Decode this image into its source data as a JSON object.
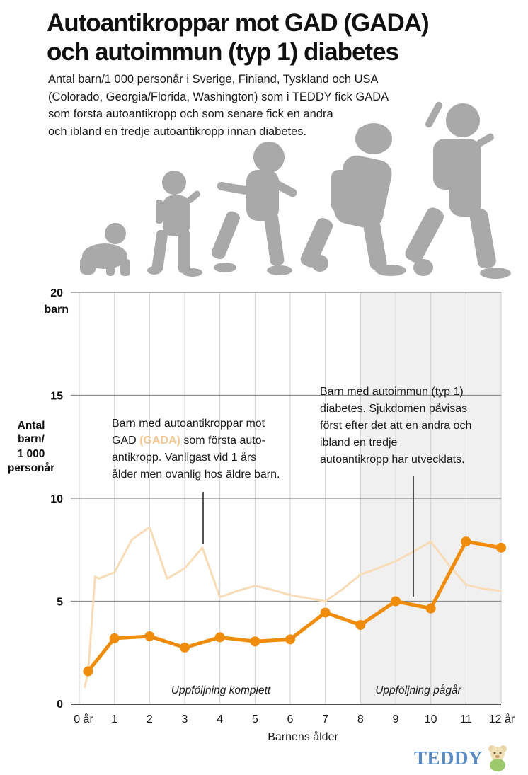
{
  "title_line1": "Autoantikroppar mot GAD (GADA)",
  "title_line2": "och autoimmun (typ 1) diabetes",
  "subtitle_lines": [
    "Antal barn/1 000 personår i Sverige, Finland, Tyskland och USA",
    "(Colorado, Georgia/Florida, Washington) som i TEDDY fick GADA",
    "som första autoantikropp och som senare fick en andra",
    "och ibland en tredje autoantikropp innan diabetes."
  ],
  "colors": {
    "gada_line": "#f8dcb8",
    "diabetes_line": "#ef8c0c",
    "grid": "#8a8a8a",
    "shade": "#f0f0f0",
    "silhouette": "#a9a9a9"
  },
  "chart_data": {
    "type": "line",
    "x_tick_labels": [
      "0 år",
      "1",
      "2",
      "3",
      "4",
      "5",
      "6",
      "7",
      "8",
      "9",
      "10",
      "11",
      "12 år"
    ],
    "y_ticks": [
      0,
      5,
      10,
      15,
      20
    ],
    "y_top_unit": "barn",
    "ylim": [
      0,
      20
    ],
    "xlim": [
      0,
      12
    ],
    "ylabel_lines": [
      "Antal",
      "barn/",
      "1 000",
      "personår"
    ],
    "xlabel": "Barnens ålder",
    "grid": true,
    "shaded_region": {
      "from": 8,
      "to": 12
    },
    "series": [
      {
        "key": "gada",
        "x": [
          0.15,
          0.25,
          0.45,
          0.55,
          1.0,
          1.5,
          2.0,
          2.5,
          3.0,
          3.5,
          4.0,
          4.5,
          5.0,
          5.5,
          6.0,
          6.5,
          7.0,
          7.5,
          8.0,
          8.5,
          9.0,
          9.5,
          10.0,
          10.5,
          11.0,
          11.5,
          12.0
        ],
        "y": [
          0.8,
          1.5,
          6.2,
          6.1,
          6.4,
          8.0,
          8.6,
          6.1,
          6.6,
          7.6,
          5.2,
          5.5,
          5.75,
          5.55,
          5.3,
          5.15,
          5.0,
          5.6,
          6.3,
          6.6,
          6.95,
          7.4,
          7.9,
          6.8,
          5.8,
          5.6,
          5.5
        ]
      },
      {
        "key": "diabetes",
        "x": [
          0.25,
          1.0,
          2.0,
          3.0,
          4.0,
          5.0,
          6.0,
          7.0,
          8.0,
          9.0,
          10.0,
          11.0,
          12.0
        ],
        "y": [
          1.6,
          3.2,
          3.3,
          2.75,
          3.25,
          3.05,
          3.15,
          4.45,
          3.85,
          5.0,
          4.65,
          7.9,
          7.6
        ]
      }
    ],
    "annotations": {
      "gada_lines": [
        "Barn med autoantikroppar mot",
        "GAD",
        "(GADA)",
        "som första auto-",
        "antikropp. Vanligast vid 1 års",
        "ålder men ovanlig hos äldre barn."
      ],
      "diabetes_lines": [
        "Barn med autoimmun (typ 1)",
        "diabetes. Sjukdomen påvisas",
        "först efter det att en andra och",
        "ibland en tredje",
        "autoantikropp har utvecklats."
      ],
      "followup_complete": "Uppföljning komplett",
      "followup_ongoing": "Uppföljning pågår"
    }
  },
  "logo_text": "TEDDY"
}
